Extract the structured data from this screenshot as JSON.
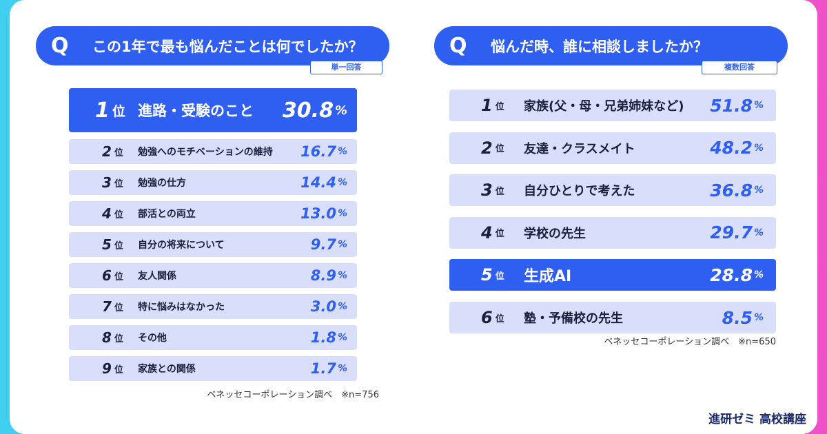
{
  "panels": [
    {
      "q": "Q",
      "title": "この1年で最も悩んだことは何でしたか？",
      "answer_type": "単一回答",
      "rank_suffix": "位",
      "unit": "%",
      "rows": [
        {
          "rank": 1,
          "label": "進路・受験のこと",
          "value": "30.8",
          "highlight": true
        },
        {
          "rank": 2,
          "label": "勉強へのモチベーションの維持",
          "value": "16.7"
        },
        {
          "rank": 3,
          "label": "勉強の仕方",
          "value": "14.4"
        },
        {
          "rank": 4,
          "label": "部活との両立",
          "value": "13.0"
        },
        {
          "rank": 5,
          "label": "自分の将来について",
          "value": "9.7"
        },
        {
          "rank": 6,
          "label": "友人関係",
          "value": "8.9"
        },
        {
          "rank": 7,
          "label": "特に悩みはなかった",
          "value": "3.0"
        },
        {
          "rank": 8,
          "label": "その他",
          "value": "1.8"
        },
        {
          "rank": 9,
          "label": "家族との関係",
          "value": "1.7"
        }
      ],
      "note": "ベネッセコーポレーション調べ　※n=756"
    },
    {
      "q": "Q",
      "title": "悩んだ時、誰に相談しましたか？",
      "answer_type": "複数回答",
      "rank_suffix": "位",
      "unit": "%",
      "rows": [
        {
          "rank": 1,
          "label": "家族(父・母・兄弟姉妹など)",
          "value": "51.8"
        },
        {
          "rank": 2,
          "label": "友達・クラスメイト",
          "value": "48.2"
        },
        {
          "rank": 3,
          "label": "自分ひとりで考えた",
          "value": "36.8"
        },
        {
          "rank": 4,
          "label": "学校の先生",
          "value": "29.7"
        },
        {
          "rank": 5,
          "label": "生成AI",
          "value": "28.8",
          "highlight": true
        },
        {
          "rank": 6,
          "label": "塾・予備校の先生",
          "value": "8.5"
        }
      ],
      "note": "ベネッセコーポレーション調べ　※n=650"
    }
  ],
  "brand": "進研ゼミ 高校講座"
}
